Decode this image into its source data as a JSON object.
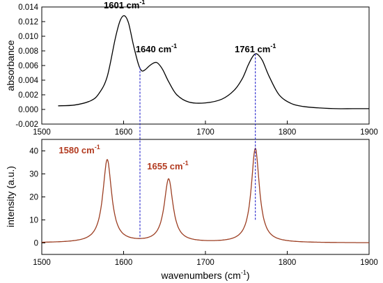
{
  "chart_data": [
    {
      "type": "line",
      "ylabel": "absorbance",
      "xlim": [
        1500,
        1900
      ],
      "ylim": [
        -0.002,
        0.014
      ],
      "x_ticks": [
        1500,
        1600,
        1700,
        1800,
        1900
      ],
      "y_ticks": [
        -0.002,
        0.0,
        0.002,
        0.004,
        0.006,
        0.008,
        0.01,
        0.012,
        0.014
      ],
      "y_tick_labels": [
        "-0.002",
        "0.000",
        "0.002",
        "0.004",
        "0.006",
        "0.008",
        "0.010",
        "0.012",
        "0.014"
      ],
      "color": "#000000",
      "series": [
        {
          "x": [
            1520,
            1540,
            1560,
            1570,
            1580,
            1590,
            1596,
            1601,
            1606,
            1612,
            1618,
            1622,
            1626,
            1632,
            1638,
            1642,
            1648,
            1655,
            1665,
            1680,
            1700,
            1720,
            1735,
            1745,
            1752,
            1757,
            1761,
            1765,
            1770,
            1778,
            1790,
            1805,
            1820,
            1840,
            1860,
            1880,
            1900
          ],
          "y": [
            0.0005,
            0.0006,
            0.0012,
            0.0022,
            0.0045,
            0.0098,
            0.0122,
            0.0128,
            0.0118,
            0.0088,
            0.0062,
            0.0053,
            0.0054,
            0.006,
            0.0064,
            0.0063,
            0.0054,
            0.0038,
            0.002,
            0.001,
            0.0009,
            0.0014,
            0.0026,
            0.0042,
            0.006,
            0.0071,
            0.0076,
            0.0074,
            0.0066,
            0.0045,
            0.002,
            0.0008,
            0.0004,
            0.0002,
            0.0001,
            0.0001,
            0.0001
          ]
        }
      ],
      "annotations": [
        {
          "label": "1601 cm",
          "sup": "-1",
          "x": 1601,
          "y": 0.0138
        },
        {
          "label": "1640 cm",
          "sup": "-1",
          "x": 1640,
          "y": 0.0078
        },
        {
          "label": "1761 cm",
          "sup": "-1",
          "x": 1761,
          "y": 0.0078
        }
      ]
    },
    {
      "type": "line",
      "xlabel": "wavenumbers (cm",
      "xlabel_sup": "-1",
      "xlabel_suffix": ")",
      "ylabel": "intensity (a.u.)",
      "xlim": [
        1500,
        1900
      ],
      "ylim": [
        -5,
        45
      ],
      "x_ticks": [
        1500,
        1600,
        1700,
        1800,
        1900
      ],
      "y_ticks": [
        0,
        10,
        20,
        30,
        40
      ],
      "color": "#9c3e22",
      "series": [
        {
          "peaks": [
            {
              "center": 1580,
              "height": 36,
              "width": 6.5
            },
            {
              "center": 1655,
              "height": 27.5,
              "width": 6.5
            },
            {
              "center": 1761,
              "height": 41,
              "width": 6
            }
          ],
          "baseline": 0
        }
      ],
      "annotations": [
        {
          "label": "1580 cm",
          "sup": "-1",
          "x": 1546,
          "y": 39
        },
        {
          "label": "1655 cm",
          "sup": "-1",
          "x": 1654,
          "y": 32
        }
      ]
    }
  ],
  "dashed_lines": [
    {
      "x": 1620,
      "from": "top",
      "to": "bottom"
    },
    {
      "x": 1761,
      "from": "top",
      "to": "bottom"
    }
  ]
}
